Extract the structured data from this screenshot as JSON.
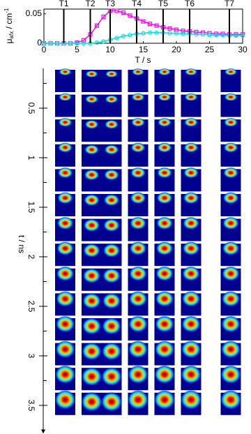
{
  "chart_data": {
    "type": "line",
    "x_label": "T / s",
    "y_label": {
      "symbol": "μ",
      "sub": "afx",
      "unit": " / cm",
      "sup": "-1"
    },
    "x": [
      0,
      1,
      2,
      3,
      4,
      5,
      6,
      7,
      8,
      9,
      10,
      11,
      12,
      13,
      14,
      15,
      16,
      17,
      18,
      19,
      20,
      21,
      22,
      23,
      24,
      25,
      26,
      27,
      28,
      29,
      30
    ],
    "series": [
      {
        "color": "#ff00ff",
        "marker": "square",
        "values": [
          0,
          0,
          0,
          0,
          0,
          0.001,
          0.005,
          0.015,
          0.03,
          0.045,
          0.055,
          0.055,
          0.052,
          0.047,
          0.042,
          0.037,
          0.033,
          0.03,
          0.027,
          0.025,
          0.023,
          0.021,
          0.02,
          0.019,
          0.018,
          0.017,
          0.016,
          0.016,
          0.015,
          0.015,
          0.015
        ]
      },
      {
        "color": "#00e0e0",
        "marker": "circle",
        "values": [
          0,
          0,
          0,
          0,
          0,
          0,
          0,
          0,
          0.001,
          0.003,
          0.006,
          0.009,
          0.012,
          0.014,
          0.016,
          0.017,
          0.018,
          0.018,
          0.018,
          0.017,
          0.017,
          0.016,
          0.016,
          0.015,
          0.015,
          0.014,
          0.014,
          0.014,
          0.013,
          0.013,
          0.013
        ]
      }
    ],
    "xlim": [
      0,
      30
    ],
    "xticks": [
      0,
      5,
      10,
      15,
      20,
      25,
      30
    ],
    "ylim": [
      0,
      0.058
    ],
    "yticks": [
      0,
      0.05
    ],
    "markers": [
      {
        "label": "T1",
        "x": 3
      },
      {
        "label": "T2",
        "x": 7
      },
      {
        "label": "T3",
        "x": 10
      },
      {
        "label": "T4",
        "x": 14
      },
      {
        "label": "T5",
        "x": 18
      },
      {
        "label": "T6",
        "x": 22
      },
      {
        "label": "T7",
        "x": 28
      }
    ],
    "time_axis": {
      "label": "t / ns",
      "lim": [
        0,
        3.75
      ],
      "ticks": [
        0.5,
        1,
        1.5,
        2,
        2.5,
        3,
        3.5
      ],
      "minor_ticks": [
        0.25,
        0.75,
        1.25,
        1.75,
        2.25,
        2.75,
        3.25
      ]
    }
  }
}
